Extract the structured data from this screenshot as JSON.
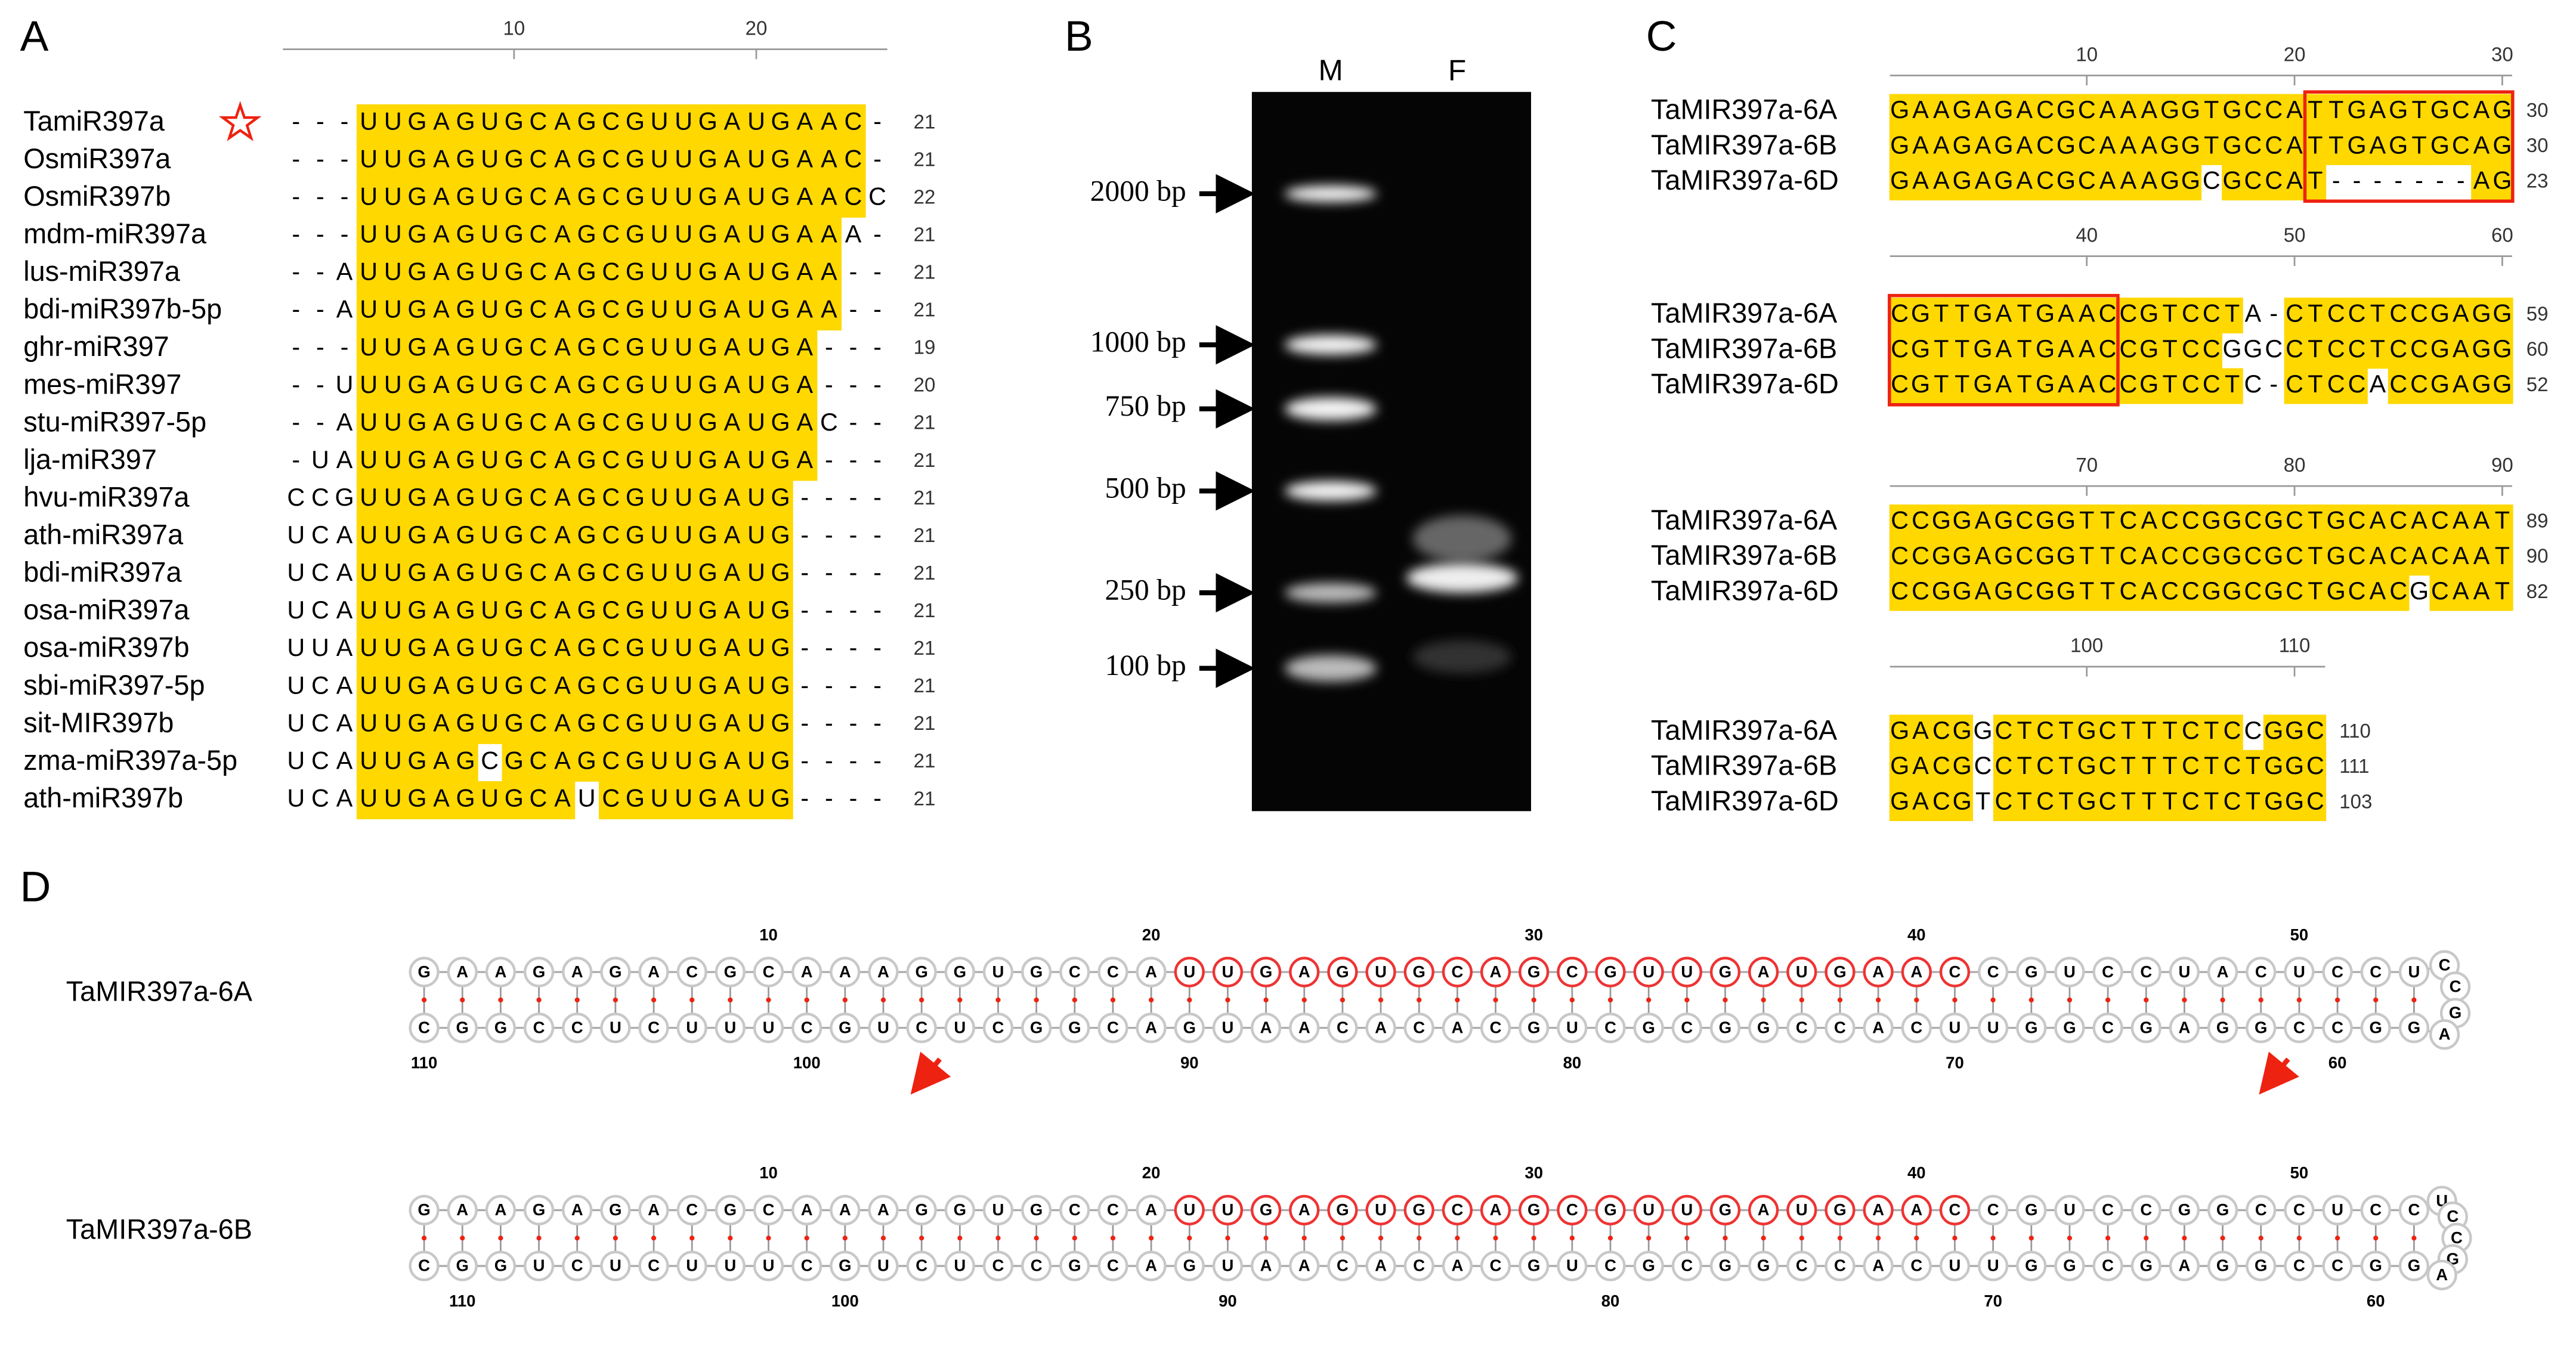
{
  "panel_a": {
    "label": "A",
    "ruler_ticks": [
      10,
      20
    ],
    "rows": [
      {
        "name": "TamiR397a",
        "sequence": "---UUGAGUGCAGCGUUGAUGAAC-",
        "length": 21
      },
      {
        "name": "OsmiR397a",
        "sequence": "---UUGAGUGCAGCGUUGAUGAAC-",
        "length": 21
      },
      {
        "name": "OsmiR397b",
        "sequence": "---UUGAGUGCAGCGUUGAUGAACC",
        "length": 22
      },
      {
        "name": "mdm-miR397a",
        "sequence": "---UUGAGUGCAGCGUUGAUGAAA-",
        "length": 21
      },
      {
        "name": "lus-miR397a",
        "sequence": "--AUUGAGUGCAGCGUUGAUGAA--",
        "length": 21
      },
      {
        "name": "bdi-miR397b-5p",
        "sequence": "--AUUGAGUGCAGCGUUGAUGAA--",
        "length": 21
      },
      {
        "name": "ghr-miR397",
        "sequence": "---UUGAGUGCAGCGUUGAUGA---",
        "length": 19
      },
      {
        "name": "mes-miR397",
        "sequence": "--UUUGAGUGCAGCGUUGAUGA---",
        "length": 20
      },
      {
        "name": "stu-miR397-5p",
        "sequence": "--AUUGAGUGCAGCGUUGAUGAC--",
        "length": 21
      },
      {
        "name": "lja-miR397",
        "sequence": "-UAUUGAGUGCAGCGUUGAUGA---",
        "length": 21
      },
      {
        "name": "hvu-miR397a",
        "sequence": "CCGUUGAGUGCAGCGUUGAUG----",
        "length": 21
      },
      {
        "name": "ath-miR397a",
        "sequence": "UCAUUGAGUGCAGCGUUGAUG----",
        "length": 21
      },
      {
        "name": "bdi-miR397a",
        "sequence": "UCAUUGAGUGCAGCGUUGAUG----",
        "length": 21
      },
      {
        "name": "osa-miR397a",
        "sequence": "UCAUUGAGUGCAGCGUUGAUG----",
        "length": 21
      },
      {
        "name": "osa-miR397b",
        "sequence": "UUAUUGAGUGCAGCGUUGAUG----",
        "length": 21
      },
      {
        "name": "sbi-miR397-5p",
        "sequence": "UCAUUGAGUGCAGCGUUGAUG----",
        "length": 21
      },
      {
        "name": "sit-MIR397b",
        "sequence": "UCAUUGAGUGCAGCGUUGAUG----",
        "length": 21
      },
      {
        "name": "zma-miR397a-5p",
        "sequence": "UCAUUGAGCGCAGCGUUGAUG----",
        "length": 21
      },
      {
        "name": "ath-miR397b",
        "sequence": "UCAUUGAGUGCAUCGUUGAUG----",
        "length": 21
      }
    ]
  },
  "panel_b": {
    "label": "B",
    "lanes": [
      "M",
      "F"
    ],
    "markers": [
      "2000 bp",
      "1000 bp",
      "750 bp",
      "500 bp",
      "250 bp",
      "100 bp"
    ]
  },
  "panel_c": {
    "label": "C",
    "blocks": [
      {
        "ticks": [
          10,
          20,
          30
        ],
        "rows": [
          {
            "name": "TaMIR397a-6A",
            "sequence": "GAAGAGACGCAAAGGTGCCATTGAGTGCAG",
            "end": 30
          },
          {
            "name": "TaMIR397a-6B",
            "sequence": "GAAGAGACGCAAAGGTGCCATTGAGTGCAG",
            "end": 30
          },
          {
            "name": "TaMIR397a-6D",
            "sequence": "GAAGAGACGCAAAGGCGCCAT-------AG",
            "end": 23
          }
        ]
      },
      {
        "ticks": [
          40,
          50,
          60
        ],
        "rows": [
          {
            "name": "TaMIR397a-6A",
            "sequence": "CGTTGATGAACCGTCCTA-CTCCTCCGAGG",
            "end": 59
          },
          {
            "name": "TaMIR397a-6B",
            "sequence": "CGTTGATGAACCGTCCGGCCTCCTCCGAGG",
            "end": 60
          },
          {
            "name": "TaMIR397a-6D",
            "sequence": "CGTTGATGAACCGTCCTC-CTCCACCGAGG",
            "end": 52
          }
        ]
      },
      {
        "ticks": [
          70,
          80,
          90
        ],
        "rows": [
          {
            "name": "TaMIR397a-6A",
            "sequence": "CCGGAGCGGTTCACCGGCGCTGCACACAAT",
            "end": 89
          },
          {
            "name": "TaMIR397a-6B",
            "sequence": "CCGGAGCGGTTCACCGGCGCTGCACACAAT",
            "end": 90
          },
          {
            "name": "TaMIR397a-6D",
            "sequence": "CCGGAGCGGTTCACCGGCGCTGCACGCAAT",
            "end": 82
          }
        ]
      },
      {
        "ticks": [
          100,
          110
        ],
        "rows": [
          {
            "name": "TaMIR397a-6A",
            "sequence": "GACGGCTCTGCTTTCTCCGGC",
            "end": 110
          },
          {
            "name": "TaMIR397a-6B",
            "sequence": "GACGCCTCTGCTTTCTCTGGC",
            "end": 111
          },
          {
            "name": "TaMIR397a-6D",
            "sequence": "GACGTCTCTGCTTTCTCTGGC",
            "end": 103
          }
        ]
      }
    ]
  },
  "panel_d": {
    "label": "D",
    "structures": [
      {
        "name": "TaMIR397a-6A",
        "sequence": "GAAGAGACGCAAAGGUGCCAUUGAGUGCAGCGUUGAUGAACCGUCCUACUCCUCCGAGGCCGGAGCGGUUCACCGGCGCUGCACACAAUGACGGCUCUGCUUUCUCCGGC",
        "numbers": [
          10,
          20,
          30,
          40,
          50,
          60,
          70,
          80,
          90,
          100,
          110
        ]
      },
      {
        "name": "TaMIR397a-6B",
        "sequence": "GAAGAGACGCAAAGGUGCCAUUGAGUGCAGCGUUGAUGAACCGUCCGGCCUCCUCCGAGGCCGGAGCGGUUCACCGGCGCUGCACACAAUGACGCCUCUGCUUUCUCUGGC",
        "numbers": [
          10,
          20,
          30,
          40,
          50,
          60,
          70,
          80,
          90,
          100,
          110
        ]
      }
    ]
  }
}
